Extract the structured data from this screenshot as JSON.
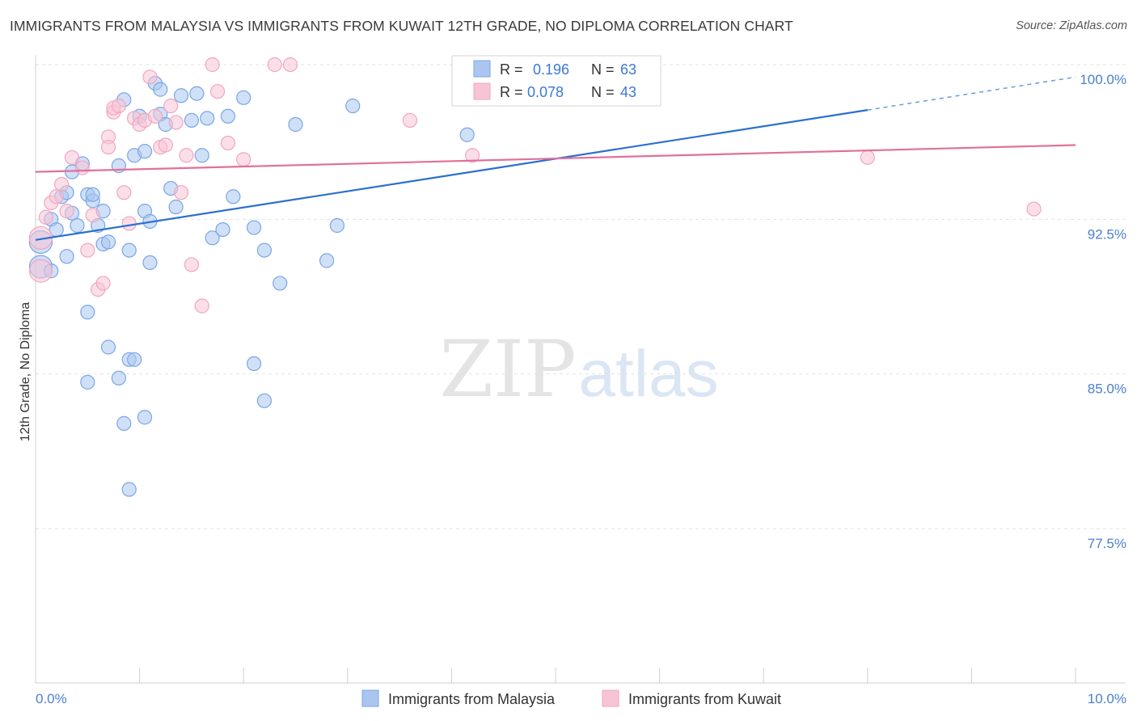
{
  "title": "IMMIGRANTS FROM MALAYSIA VS IMMIGRANTS FROM KUWAIT 12TH GRADE, NO DIPLOMA CORRELATION CHART",
  "source": "Source: ZipAtlas.com",
  "watermark": {
    "zip": "ZIP",
    "atlas": "atlas"
  },
  "chart_data": {
    "type": "scatter",
    "ylabel": "12th Grade, No Diploma",
    "xlim": [
      0,
      10
    ],
    "ylim": [
      70.5,
      101.5
    ],
    "x_tick_labels": [
      "0.0%",
      "10.0%"
    ],
    "y_ticks": [
      100.0,
      92.5,
      85.0,
      77.5
    ],
    "y_tick_labels": [
      "100.0%",
      "92.5%",
      "85.0%",
      "77.5%"
    ],
    "legend": {
      "r_label": "R =",
      "n_label": "N =",
      "entries": [
        {
          "r": "0.196",
          "n": "63"
        },
        {
          "r": "0.078",
          "n": "43"
        }
      ]
    },
    "series": [
      {
        "name": "Immigrants from Malaysia",
        "color": "#7aa6e6",
        "fill": "#aac6f0",
        "line_color": "#2b6fd0",
        "trend": {
          "x0": 0.0,
          "y0": 91.5,
          "x1": 8.0,
          "y1": 97.8,
          "dash_x1": 10.0,
          "dash_y1": 99.4
        },
        "points": [
          [
            0.05,
            91.4
          ],
          [
            0.05,
            90.2
          ],
          [
            0.15,
            92.5
          ],
          [
            0.15,
            90.0
          ],
          [
            0.2,
            92.0
          ],
          [
            0.25,
            93.6
          ],
          [
            0.3,
            93.8
          ],
          [
            0.3,
            90.7
          ],
          [
            0.35,
            92.8
          ],
          [
            0.35,
            94.8
          ],
          [
            0.4,
            92.2
          ],
          [
            0.45,
            95.2
          ],
          [
            0.5,
            93.7
          ],
          [
            0.55,
            93.4
          ],
          [
            0.55,
            93.7
          ],
          [
            0.6,
            92.2
          ],
          [
            0.65,
            92.9
          ],
          [
            0.65,
            91.3
          ],
          [
            0.7,
            91.4
          ],
          [
            0.8,
            95.1
          ],
          [
            0.85,
            98.3
          ],
          [
            0.9,
            91.0
          ],
          [
            0.95,
            95.6
          ],
          [
            1.0,
            97.5
          ],
          [
            1.05,
            95.8
          ],
          [
            1.05,
            92.9
          ],
          [
            1.1,
            92.4
          ],
          [
            1.1,
            90.4
          ],
          [
            1.15,
            99.1
          ],
          [
            1.2,
            97.6
          ],
          [
            1.2,
            98.8
          ],
          [
            1.25,
            97.1
          ],
          [
            1.3,
            94.0
          ],
          [
            1.35,
            93.1
          ],
          [
            1.4,
            98.5
          ],
          [
            1.5,
            97.3
          ],
          [
            1.55,
            98.6
          ],
          [
            1.6,
            95.6
          ],
          [
            1.65,
            97.4
          ],
          [
            1.7,
            91.6
          ],
          [
            1.8,
            92.0
          ],
          [
            1.85,
            97.5
          ],
          [
            1.9,
            93.6
          ],
          [
            2.0,
            98.4
          ],
          [
            2.1,
            92.1
          ],
          [
            2.2,
            91.0
          ],
          [
            2.35,
            89.4
          ],
          [
            2.5,
            97.1
          ],
          [
            2.8,
            90.5
          ],
          [
            2.9,
            92.2
          ],
          [
            3.05,
            98.0
          ],
          [
            4.15,
            96.6
          ],
          [
            0.5,
            88.0
          ],
          [
            0.7,
            86.3
          ],
          [
            0.9,
            85.7
          ],
          [
            0.95,
            85.7
          ],
          [
            0.5,
            84.6
          ],
          [
            0.8,
            84.8
          ],
          [
            2.1,
            85.5
          ],
          [
            2.2,
            83.7
          ],
          [
            0.85,
            82.6
          ],
          [
            1.05,
            82.9
          ],
          [
            0.9,
            79.4
          ]
        ]
      },
      {
        "name": "Immigrants from Kuwait",
        "color": "#f0a6c0",
        "fill": "#f7c4d6",
        "line_color": "#e0709a",
        "trend": {
          "x0": 0.0,
          "y0": 94.8,
          "x1": 10.0,
          "y1": 96.1
        },
        "points": [
          [
            0.05,
            91.6
          ],
          [
            0.05,
            90.0
          ],
          [
            0.1,
            92.6
          ],
          [
            0.15,
            93.3
          ],
          [
            0.2,
            93.6
          ],
          [
            0.25,
            94.2
          ],
          [
            0.3,
            92.9
          ],
          [
            0.35,
            95.5
          ],
          [
            0.45,
            95.0
          ],
          [
            0.5,
            91.0
          ],
          [
            0.55,
            92.7
          ],
          [
            0.6,
            89.1
          ],
          [
            0.65,
            89.4
          ],
          [
            0.7,
            96.5
          ],
          [
            0.7,
            96.0
          ],
          [
            0.75,
            97.7
          ],
          [
            0.75,
            97.9
          ],
          [
            0.8,
            98.0
          ],
          [
            0.85,
            93.8
          ],
          [
            0.9,
            92.3
          ],
          [
            0.95,
            97.4
          ],
          [
            1.0,
            97.1
          ],
          [
            1.05,
            97.3
          ],
          [
            1.1,
            99.4
          ],
          [
            1.15,
            97.5
          ],
          [
            1.2,
            96.0
          ],
          [
            1.25,
            96.1
          ],
          [
            1.3,
            98.0
          ],
          [
            1.35,
            97.2
          ],
          [
            1.4,
            93.8
          ],
          [
            1.45,
            95.6
          ],
          [
            1.5,
            90.3
          ],
          [
            1.6,
            88.3
          ],
          [
            1.7,
            100.0
          ],
          [
            1.75,
            98.7
          ],
          [
            1.85,
            96.2
          ],
          [
            2.0,
            95.4
          ],
          [
            2.3,
            100.0
          ],
          [
            2.45,
            100.0
          ],
          [
            3.6,
            97.3
          ],
          [
            4.2,
            95.6
          ],
          [
            8.0,
            95.5
          ],
          [
            9.6,
            93.0
          ]
        ]
      }
    ]
  },
  "bottom_legend": [
    "Immigrants from Malaysia",
    "Immigrants from Kuwait"
  ]
}
